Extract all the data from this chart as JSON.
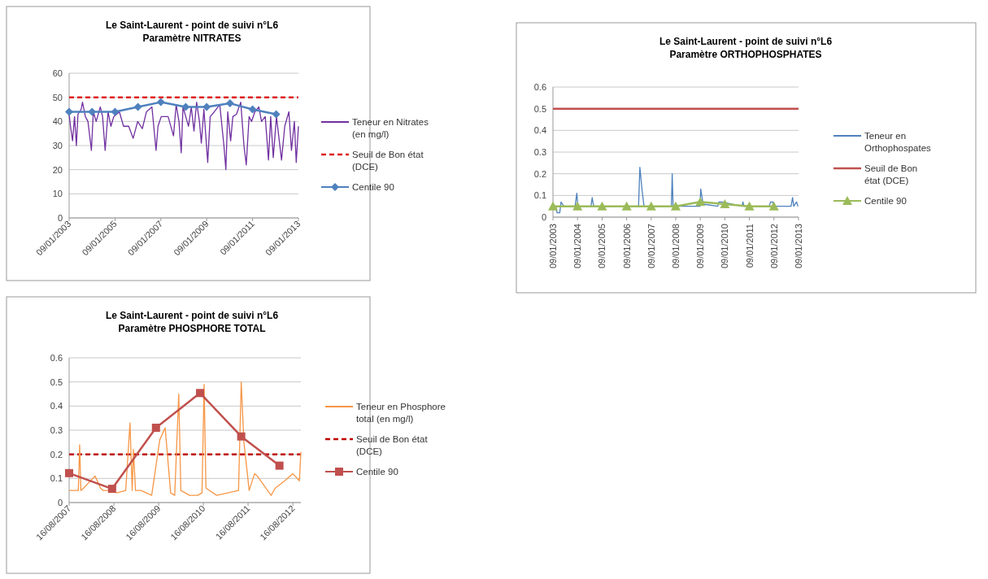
{
  "chart_data": [
    {
      "type": "line",
      "title": "Le Saint-Laurent - point de suivi n°L6",
      "subtitle": "Paramètre NITRATES",
      "ylim": [
        0,
        60
      ],
      "yticks": [
        0,
        10,
        20,
        30,
        40,
        50,
        60
      ],
      "xlim": [
        "2003-01-09",
        "2013-01-09"
      ],
      "xticks": [
        {
          "value": "2003-01-09",
          "label": "09/01/2003"
        },
        {
          "value": "2005-01-09",
          "label": "09/01/2005"
        },
        {
          "value": "2007-01-09",
          "label": "09/01/2007"
        },
        {
          "value": "2009-01-09",
          "label": "09/01/2009"
        },
        {
          "value": "2011-01-09",
          "label": "09/01/2011"
        },
        {
          "value": "2013-01-09",
          "label": "09/01/2013"
        }
      ],
      "grid": "y",
      "legend": "right",
      "series": [
        {
          "name": "Teneur en Nitrates (en mg/l)",
          "color": "#7030a0",
          "x": [
            "2003-01-09",
            "2003-01-31",
            "2003-03-05",
            "2003-04-05",
            "2003-05-05",
            "2003-05-30",
            "2003-07-20",
            "2003-08-10",
            "2003-09-25",
            "2003-11-05",
            "2003-11-28",
            "2003-12-30",
            "2004-01-30",
            "2004-03-15",
            "2004-05-20",
            "2004-06-25",
            "2004-08-05",
            "2004-09-20",
            "2004-11-05",
            "2004-12-20",
            "2005-03-20",
            "2005-05-25",
            "2005-08-15",
            "2005-10-25",
            "2006-01-05",
            "2006-03-20",
            "2006-05-25",
            "2006-08-20",
            "2006-10-25",
            "2006-11-25",
            "2007-01-15",
            "2007-05-05",
            "2007-07-30",
            "2007-09-10",
            "2007-10-25",
            "2007-11-30",
            "2007-12-28",
            "2008-02-10",
            "2008-03-25",
            "2008-05-08",
            "2008-06-20",
            "2008-08-01",
            "2008-09-15",
            "2008-10-15",
            "2008-11-25",
            "2009-01-25",
            "2009-03-05",
            "2009-05-10",
            "2009-08-05",
            "2009-10-10",
            "2009-11-10",
            "2009-12-10",
            "2010-01-25",
            "2010-03-01",
            "2010-04-28",
            "2010-07-05",
            "2010-08-25",
            "2010-10-01",
            "2010-11-15",
            "2010-12-25",
            "2011-02-15",
            "2011-04-20",
            "2011-06-01",
            "2011-07-30",
            "2011-09-20",
            "2011-10-25",
            "2011-12-05",
            "2012-01-25",
            "2012-04-15",
            "2012-06-05",
            "2012-08-10",
            "2012-09-20",
            "2012-11-05",
            "2012-12-05",
            "2013-01-09"
          ],
          "values": [
            43,
            38,
            32,
            42,
            30,
            43,
            45,
            48,
            42,
            40,
            35,
            28,
            44,
            40,
            46,
            42,
            28,
            44,
            38,
            42,
            44,
            38,
            38,
            33,
            40,
            37,
            44,
            46,
            28,
            38,
            42,
            42,
            34,
            47,
            40,
            27,
            46,
            42,
            38,
            46,
            36,
            48,
            40,
            31,
            45,
            23,
            42,
            44,
            47,
            30,
            20,
            44,
            32,
            42,
            43,
            48,
            30,
            22,
            42,
            40,
            44,
            46,
            40,
            42,
            24,
            42,
            25,
            42,
            24,
            38,
            44,
            28,
            40,
            23,
            38
          ]
        },
        {
          "name": "Centile 90",
          "color": "#4f81bd",
          "marker": "diamond",
          "x": [
            "2003-01-09",
            "2004-01-09",
            "2005-01-09",
            "2006-01-09",
            "2007-01-09",
            "2008-02-09",
            "2009-01-09",
            "2010-01-15",
            "2011-01-09",
            "2012-01-20"
          ],
          "values": [
            44,
            44,
            44,
            46,
            48,
            46,
            46,
            47.5,
            45,
            43
          ]
        }
      ],
      "ref_lines": [
        {
          "axis": "y",
          "value": 50,
          "label": "Seuil de Bon état (DCE)",
          "color": "#e02020",
          "line_style": "dashed"
        }
      ]
    },
    {
      "type": "line",
      "title": "Le Saint-Laurent - point de suivi n°L6",
      "subtitle": "Paramètre ORTHOPHOSPHATES",
      "ylim": [
        0,
        0.6
      ],
      "yticks": [
        0,
        0.1,
        0.2,
        0.3,
        0.4,
        0.5,
        0.6
      ],
      "xlim": [
        "2003-01-09",
        "2013-01-09"
      ],
      "xticks": [
        {
          "value": "2003-01-09",
          "label": "09/01/2003"
        },
        {
          "value": "2004-01-09",
          "label": "09/01/2004"
        },
        {
          "value": "2005-01-09",
          "label": "09/01/2005"
        },
        {
          "value": "2006-01-09",
          "label": "09/01/2006"
        },
        {
          "value": "2007-01-09",
          "label": "09/01/2007"
        },
        {
          "value": "2008-01-09",
          "label": "09/01/2008"
        },
        {
          "value": "2009-01-09",
          "label": "09/01/2009"
        },
        {
          "value": "2010-01-09",
          "label": "09/01/2010"
        },
        {
          "value": "2011-01-09",
          "label": "09/01/2011"
        },
        {
          "value": "2012-01-09",
          "label": "09/01/2012"
        },
        {
          "value": "2013-01-09",
          "label": "09/01/2013"
        }
      ],
      "grid": "y",
      "legend": "right",
      "series": [
        {
          "name": "Teneur en Orthophospates",
          "color": "#4f81bd",
          "x": [
            "2003-02-20",
            "2003-03-10",
            "2003-04-20",
            "2003-05-10",
            "2003-05-30",
            "2003-06-20",
            "2003-12-05",
            "2003-12-30",
            "2004-01-15",
            "2004-07-28",
            "2004-08-15",
            "2004-08-30",
            "2004-09-15",
            "2006-07-05",
            "2006-07-25",
            "2006-08-28",
            "2006-09-25",
            "2007-11-05",
            "2007-11-18",
            "2007-12-01",
            "2009-01-05",
            "2009-01-15",
            "2009-01-30",
            "2009-02-20",
            "2009-09-25",
            "2009-10-12",
            "2009-11-25",
            "2010-09-25",
            "2010-10-05",
            "2010-10-20",
            "2011-10-30",
            "2011-11-20",
            "2011-12-25",
            "2012-01-09",
            "2012-09-20",
            "2012-10-12",
            "2012-10-30",
            "2012-12-10",
            "2013-01-01"
          ],
          "values": [
            0.05,
            0.02,
            0.02,
            0.07,
            0.06,
            0.05,
            0.05,
            0.11,
            0.05,
            0.05,
            0.09,
            0.06,
            0.05,
            0.05,
            0.23,
            0.12,
            0.05,
            0.05,
            0.2,
            0.05,
            0.05,
            0.13,
            0.1,
            0.06,
            0.05,
            0.07,
            0.07,
            0.05,
            0.07,
            0.05,
            0.05,
            0.07,
            0.07,
            0.05,
            0.05,
            0.09,
            0.05,
            0.07,
            0.05
          ]
        },
        {
          "name": "Centile 90",
          "color": "#9bbb59",
          "marker": "triangle",
          "x": [
            "2003-01-09",
            "2004-01-09",
            "2005-01-09",
            "2006-01-09",
            "2007-01-09",
            "2008-01-09",
            "2009-01-09",
            "2010-01-09",
            "2011-01-09",
            "2012-01-09"
          ],
          "values": [
            0.05,
            0.05,
            0.05,
            0.05,
            0.05,
            0.05,
            0.07,
            0.06,
            0.05,
            0.05
          ]
        }
      ],
      "ref_lines": [
        {
          "axis": "y",
          "value": 0.5,
          "label": "Seuil de Bon état (DCE)",
          "color": "#c0504d",
          "line_style": "solid"
        }
      ]
    },
    {
      "type": "line",
      "title": "Le Saint-Laurent - point de suivi n°L6",
      "subtitle": "Paramètre PHOSPHORE TOTAL",
      "ylim": [
        0,
        0.6
      ],
      "yticks": [
        0,
        0.1,
        0.2,
        0.3,
        0.4,
        0.5,
        0.6
      ],
      "xlim": [
        "2007-08-16",
        "2012-10-20"
      ],
      "xticks": [
        {
          "value": "2007-08-16",
          "label": "16/08/2007"
        },
        {
          "value": "2008-08-16",
          "label": "16/08/2008"
        },
        {
          "value": "2009-08-16",
          "label": "16/08/2009"
        },
        {
          "value": "2010-08-16",
          "label": "16/08/2010"
        },
        {
          "value": "2011-08-16",
          "label": "16/08/2011"
        },
        {
          "value": "2012-08-16",
          "label": "16/08/2012"
        }
      ],
      "grid": "y",
      "legend": "right",
      "series": [
        {
          "name": "Teneur en Phosphore total (en mg/l)",
          "color": "#f79646",
          "x": [
            "2007-08-16",
            "2007-10-30",
            "2007-11-10",
            "2007-11-20",
            "2007-12-12",
            "2008-03-15",
            "2008-04-28",
            "2008-05-20",
            "2008-08-15",
            "2008-09-05",
            "2008-11-20",
            "2008-12-25",
            "2009-01-12",
            "2009-01-22",
            "2009-02-08",
            "2009-03-25",
            "2009-06-20",
            "2009-08-25",
            "2009-10-08",
            "2009-11-22",
            "2009-12-25",
            "2010-01-27",
            "2010-02-13",
            "2010-04-25",
            "2010-07-01",
            "2010-08-05",
            "2010-08-22",
            "2010-09-06",
            "2010-12-03",
            "2011-05-30",
            "2011-06-21",
            "2011-07-13",
            "2011-08-25",
            "2011-10-08",
            "2011-10-30",
            "2012-02-20",
            "2012-03-25",
            "2012-06-10",
            "2012-08-15",
            "2012-10-08",
            "2012-10-20"
          ],
          "values": [
            0.05,
            0.05,
            0.24,
            0.05,
            0.06,
            0.11,
            0.06,
            0.05,
            0.05,
            0.04,
            0.05,
            0.33,
            0.05,
            0.22,
            0.05,
            0.05,
            0.03,
            0.26,
            0.31,
            0.04,
            0.03,
            0.45,
            0.05,
            0.03,
            0.03,
            0.04,
            0.49,
            0.06,
            0.03,
            0.05,
            0.5,
            0.25,
            0.05,
            0.12,
            0.11,
            0.03,
            0.06,
            0.09,
            0.12,
            0.09,
            0.21
          ]
        },
        {
          "name": "Centile 90",
          "color": "#c0504d",
          "marker": "square",
          "x": [
            "2007-08-16",
            "2008-08-01",
            "2009-07-25",
            "2010-07-20",
            "2011-06-21",
            "2012-04-28"
          ],
          "values": [
            0.122,
            0.057,
            0.31,
            0.454,
            0.274,
            0.153
          ]
        }
      ],
      "ref_lines": [
        {
          "axis": "y",
          "value": 0.2,
          "label": "Seuil de Bon état (DCE)",
          "color": "#c00000",
          "line_style": "dashed"
        }
      ]
    }
  ]
}
